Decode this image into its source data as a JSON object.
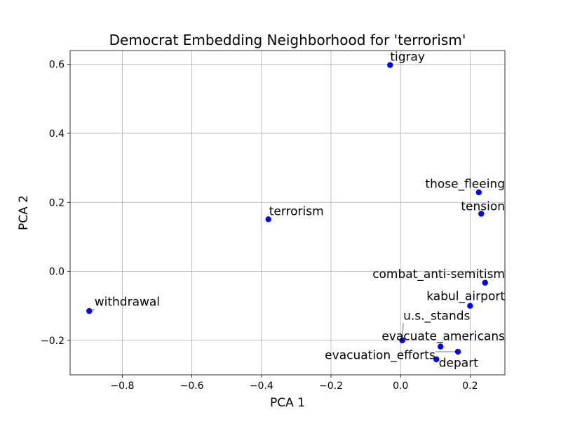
{
  "chart_data": {
    "type": "scatter",
    "title": "Democrat Embedding Neighborhood for 'terrorism'",
    "xlabel": "PCA 1",
    "ylabel": "PCA 2",
    "xlim": [
      -0.95,
      0.3
    ],
    "ylim": [
      -0.3,
      0.64
    ],
    "xticks": [
      -0.8,
      -0.6,
      -0.4,
      -0.2,
      0.0,
      0.2
    ],
    "xtick_labels": [
      "−0.8",
      "−0.6",
      "−0.4",
      "−0.2",
      "0.0",
      "0.2"
    ],
    "yticks": [
      -0.2,
      0.0,
      0.2,
      0.4,
      0.6
    ],
    "ytick_labels": [
      "−0.2",
      "0.0",
      "0.2",
      "0.4",
      "0.6"
    ],
    "grid": true,
    "marker_color": "#0000ff",
    "leader_color": "#808080",
    "points": [
      {
        "label": "tigray",
        "x": -0.03,
        "y": 0.598,
        "tx": -0.03,
        "ty": 0.61,
        "ha": "left"
      },
      {
        "label": "those_fleeing",
        "x": 0.225,
        "y": 0.229,
        "tx": 0.3,
        "ty": 0.242,
        "ha": "right"
      },
      {
        "label": "tension",
        "x": 0.232,
        "y": 0.167,
        "tx": 0.3,
        "ty": 0.177,
        "ha": "right"
      },
      {
        "label": "terrorism",
        "x": -0.38,
        "y": 0.151,
        "tx": -0.378,
        "ty": 0.163,
        "ha": "left"
      },
      {
        "label": "combat_anti-semitism",
        "x": 0.243,
        "y": -0.033,
        "tx": 0.3,
        "ty": -0.019,
        "ha": "right"
      },
      {
        "label": "kabul_airport",
        "x": 0.2,
        "y": -0.1,
        "tx": 0.3,
        "ty": -0.083,
        "ha": "right"
      },
      {
        "label": "withdrawal",
        "x": -0.895,
        "y": -0.115,
        "tx": -0.88,
        "ty": -0.1,
        "ha": "left"
      },
      {
        "label": "u.s._stands",
        "x": 0.005,
        "y": -0.2,
        "tx": 0.2,
        "ty": -0.14,
        "ha": "right"
      },
      {
        "label": "evacuate_americans",
        "x": 0.115,
        "y": -0.218,
        "tx": 0.3,
        "ty": -0.199,
        "ha": "right"
      },
      {
        "label": "evacuation_efforts",
        "x": 0.165,
        "y": -0.233,
        "tx": 0.1,
        "ty": -0.254,
        "ha": "right"
      },
      {
        "label": "depart",
        "x": 0.103,
        "y": -0.255,
        "tx": 0.11,
        "ty": -0.277,
        "ha": "left"
      }
    ]
  }
}
